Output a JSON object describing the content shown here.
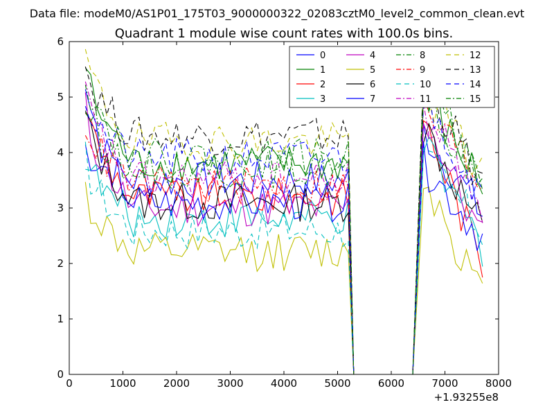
{
  "chart_data": {
    "type": "line",
    "suptitle": "Data file: modeM0/AS1P01_175T03_9000000322_02083cztM0_level2_common_clean.evt",
    "title": "Quadrant 1 module wise count rates with 100.0s bins.",
    "xlabel": "",
    "ylabel": "",
    "x_offset_label": "+1.93255e8",
    "xlim": [
      0,
      8000
    ],
    "ylim": [
      0,
      6
    ],
    "xticks": [
      0,
      1000,
      2000,
      3000,
      4000,
      5000,
      6000,
      7000,
      8000
    ],
    "yticks": [
      0,
      1,
      2,
      3,
      4,
      5,
      6
    ],
    "grid": false,
    "legend_position": "top-right",
    "gap": {
      "drop_start": 5200,
      "zero_start": 5300,
      "zero_end": 6400,
      "rise_end": 6600,
      "end": 7700
    },
    "series": [
      {
        "name": "0",
        "color": "#0000ff",
        "dash": "solid",
        "start": 4.1,
        "level": 3.5,
        "post": 3.6,
        "end": 2.9
      },
      {
        "name": "1",
        "color": "#008000",
        "dash": "solid",
        "start": 5.6,
        "level": 3.8,
        "post": 4.2,
        "end": 3.4
      },
      {
        "name": "2",
        "color": "#ff0000",
        "dash": "solid",
        "start": 4.9,
        "level": 3.2,
        "post": 3.8,
        "end": 2.0
      },
      {
        "name": "3",
        "color": "#00bfbf",
        "dash": "solid",
        "start": 4.0,
        "level": 2.8,
        "post": 3.3,
        "end": 2.3
      },
      {
        "name": "4",
        "color": "#bf00bf",
        "dash": "solid",
        "start": 4.8,
        "level": 3.0,
        "post": 3.9,
        "end": 2.4
      },
      {
        "name": "5",
        "color": "#bfbf00",
        "dash": "solid",
        "start": 3.3,
        "level": 2.2,
        "post": 2.8,
        "end": 1.4
      },
      {
        "name": "6",
        "color": "#000000",
        "dash": "solid",
        "start": 4.7,
        "level": 3.1,
        "post": 3.7,
        "end": 2.6
      },
      {
        "name": "7",
        "color": "#0000ff",
        "dash": "solid",
        "start": 5.2,
        "level": 3.1,
        "post": 3.0,
        "end": 2.5
      },
      {
        "name": "8",
        "color": "#008000",
        "dash": "dashdot",
        "start": 4.9,
        "level": 3.7,
        "post": 4.3,
        "end": 3.6
      },
      {
        "name": "9",
        "color": "#ff0000",
        "dash": "dashdot",
        "start": 4.6,
        "level": 3.4,
        "post": 4.0,
        "end": 3.5
      },
      {
        "name": "10",
        "color": "#00bfbf",
        "dash": "dashed",
        "start": 3.9,
        "level": 2.6,
        "post": 3.1,
        "end": 2.6
      },
      {
        "name": "11",
        "color": "#bf00bf",
        "dash": "dashdot",
        "start": 5.1,
        "level": 3.5,
        "post": 4.0,
        "end": 3.1
      },
      {
        "name": "12",
        "color": "#bfbf00",
        "dash": "dashed",
        "start": 5.8,
        "level": 4.2,
        "post": 4.4,
        "end": 3.6
      },
      {
        "name": "13",
        "color": "#000000",
        "dash": "dashed",
        "start": 5.6,
        "level": 4.3,
        "post": 4.6,
        "end": 3.4
      },
      {
        "name": "14",
        "color": "#0000ff",
        "dash": "dashed",
        "start": 5.0,
        "level": 3.9,
        "post": 4.2,
        "end": 3.2
      },
      {
        "name": "15",
        "color": "#008000",
        "dash": "dashdot",
        "start": 5.5,
        "level": 3.9,
        "post": 4.4,
        "end": 3.3
      }
    ]
  }
}
